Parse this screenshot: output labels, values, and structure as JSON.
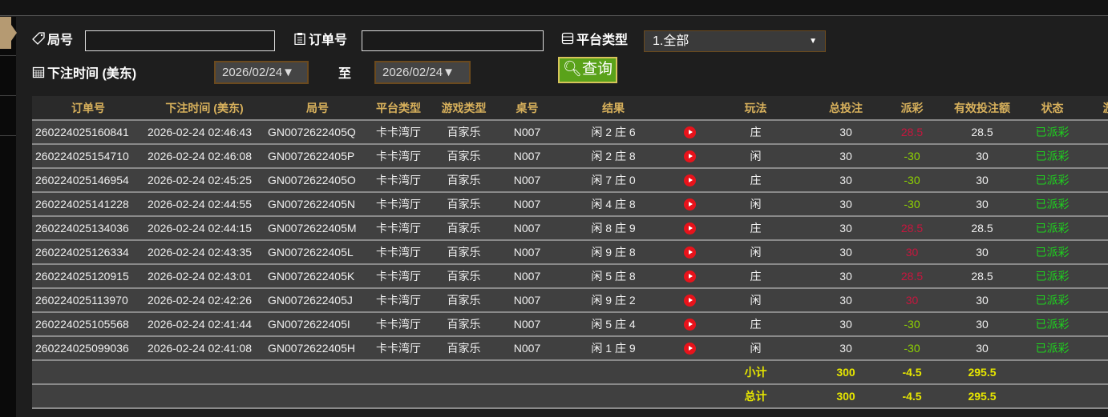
{
  "filters": {
    "round_label": "局号",
    "round_value": "",
    "order_label": "订单号",
    "order_value": "",
    "platform_label": "平台类型",
    "platform_value": "1.全部",
    "time_label": "下注时间 (美东)",
    "date_from": "2026/02/24▼",
    "to_label": "至",
    "date_to": "2026/02/24▼",
    "query_label": "查询"
  },
  "table": {
    "headers": [
      "订单号",
      "下注时间 (美东)",
      "局号",
      "平台类型",
      "游戏类型",
      "桌号",
      "结果",
      "",
      "玩法",
      "总投注",
      "派彩",
      "有效投注额",
      "状态",
      "游"
    ],
    "rows": [
      [
        "260224025160841",
        "2026-02-24 02:46:43",
        "GN0072622405Q",
        "卡卡湾厅",
        "百家乐",
        "N007",
        "闲 2 庄 6",
        "庄",
        "30",
        "28.5",
        "28.5",
        "已派彩"
      ],
      [
        "260224025154710",
        "2026-02-24 02:46:08",
        "GN0072622405P",
        "卡卡湾厅",
        "百家乐",
        "N007",
        "闲 2 庄 8",
        "闲",
        "30",
        "-30",
        "30",
        "已派彩"
      ],
      [
        "260224025146954",
        "2026-02-24 02:45:25",
        "GN0072622405O",
        "卡卡湾厅",
        "百家乐",
        "N007",
        "闲 7 庄 0",
        "庄",
        "30",
        "-30",
        "30",
        "已派彩"
      ],
      [
        "260224025141228",
        "2026-02-24 02:44:55",
        "GN0072622405N",
        "卡卡湾厅",
        "百家乐",
        "N007",
        "闲 4 庄 8",
        "闲",
        "30",
        "-30",
        "30",
        "已派彩"
      ],
      [
        "260224025134036",
        "2026-02-24 02:44:15",
        "GN0072622405M",
        "卡卡湾厅",
        "百家乐",
        "N007",
        "闲 8 庄 9",
        "庄",
        "30",
        "28.5",
        "28.5",
        "已派彩"
      ],
      [
        "260224025126334",
        "2026-02-24 02:43:35",
        "GN0072622405L",
        "卡卡湾厅",
        "百家乐",
        "N007",
        "闲 9 庄 8",
        "闲",
        "30",
        "30",
        "30",
        "已派彩"
      ],
      [
        "260224025120915",
        "2026-02-24 02:43:01",
        "GN0072622405K",
        "卡卡湾厅",
        "百家乐",
        "N007",
        "闲 5 庄 8",
        "庄",
        "30",
        "28.5",
        "28.5",
        "已派彩"
      ],
      [
        "260224025113970",
        "2026-02-24 02:42:26",
        "GN0072622405J",
        "卡卡湾厅",
        "百家乐",
        "N007",
        "闲 9 庄 2",
        "闲",
        "30",
        "30",
        "30",
        "已派彩"
      ],
      [
        "260224025105568",
        "2026-02-24 02:41:44",
        "GN0072622405I",
        "卡卡湾厅",
        "百家乐",
        "N007",
        "闲 5 庄 4",
        "庄",
        "30",
        "-30",
        "30",
        "已派彩"
      ],
      [
        "260224025099036",
        "2026-02-24 02:41:08",
        "GN0072622405H",
        "卡卡湾厅",
        "百家乐",
        "N007",
        "闲 1 庄 9",
        "闲",
        "30",
        "-30",
        "30",
        "已派彩"
      ]
    ],
    "subtotal": {
      "label": "小计",
      "total_bet": "300",
      "payout": "-4.5",
      "valid_bet": "295.5"
    },
    "total": {
      "label": "总计",
      "total_bet": "300",
      "payout": "-4.5",
      "valid_bet": "295.5"
    }
  },
  "colors": {
    "header_text": "#d8b15c",
    "win": "#c8163e",
    "loss": "#8fd400",
    "status": "#1ed21e",
    "summary": "#e6e600",
    "query_button": "#5aa21a"
  },
  "icons": {
    "round": "tag-icon",
    "order": "clipboard-icon",
    "platform": "server-icon",
    "time": "calendar-icon",
    "query": "search-icon",
    "replay": "play-icon"
  }
}
